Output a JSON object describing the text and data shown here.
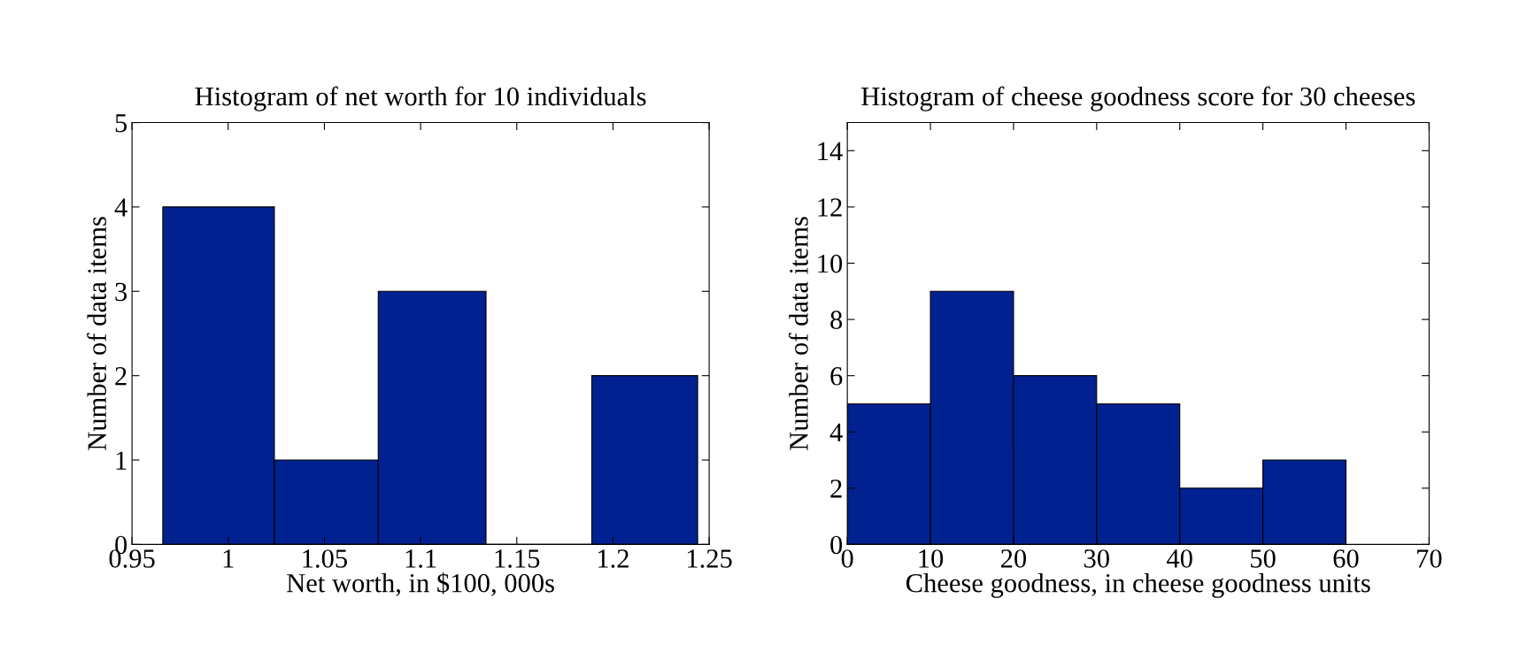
{
  "chart_data": [
    {
      "type": "histogram",
      "title": "Histogram of net worth for 10 individuals",
      "xlabel": "Net worth, in $100, 000s",
      "ylabel": "Number of data items",
      "color": "#00218f",
      "bins": [
        0.966,
        1.024,
        1.078,
        1.134,
        1.189,
        1.244
      ],
      "values": [
        4,
        1,
        3,
        0,
        2
      ],
      "xlim": [
        0.95,
        1.25
      ],
      "xticks": [
        0.95,
        1,
        1.05,
        1.1,
        1.15,
        1.2,
        1.25
      ],
      "ylim": [
        0,
        5
      ],
      "yticks": [
        0,
        1,
        2,
        3,
        4,
        5
      ],
      "grid": false
    },
    {
      "type": "histogram",
      "title": "Histogram of cheese goodness score for 30 cheeses",
      "xlabel": "Cheese goodness, in cheese goodness units",
      "ylabel": "Number of data items",
      "color": "#00218f",
      "bins": [
        0,
        10,
        20,
        30,
        40,
        50,
        60
      ],
      "values": [
        5,
        9,
        6,
        5,
        2,
        3
      ],
      "xlim": [
        0,
        70
      ],
      "xticks": [
        0,
        10,
        20,
        30,
        40,
        50,
        60,
        70
      ],
      "ylim": [
        0,
        15
      ],
      "yticks": [
        0,
        2,
        4,
        6,
        8,
        10,
        12,
        14
      ],
      "grid": false
    }
  ]
}
